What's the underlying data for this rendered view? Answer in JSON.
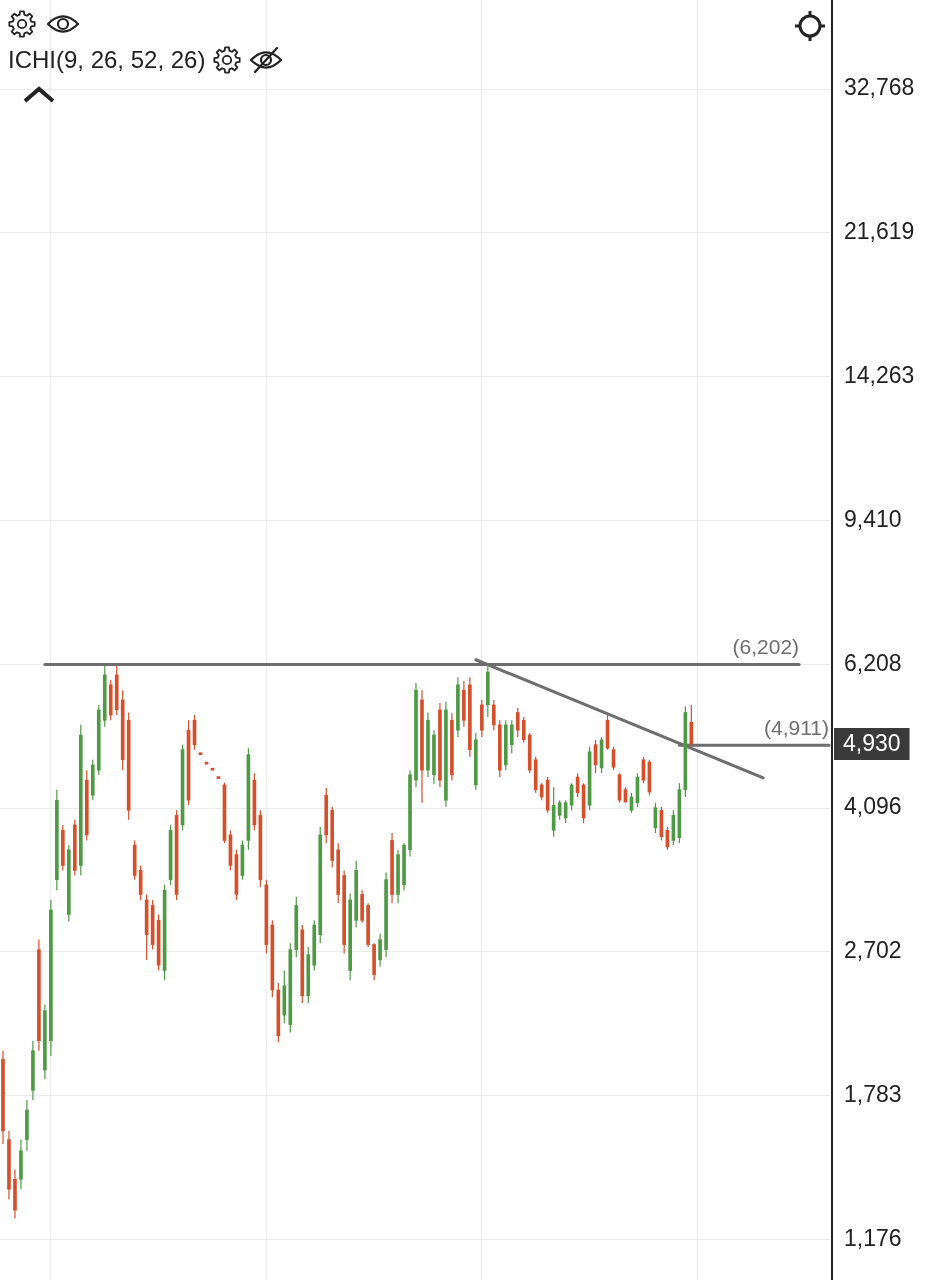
{
  "chart_data": {
    "type": "candlestick",
    "categories": [
      null,
      null,
      null,
      null,
      null,
      null,
      null,
      null,
      null,
      null,
      null,
      null,
      null,
      null,
      null,
      null,
      null,
      null,
      null,
      null,
      null,
      null,
      null,
      null,
      null,
      null,
      null,
      null,
      null,
      null,
      null,
      null,
      null,
      null,
      null,
      null,
      null,
      null,
      null,
      null,
      null,
      null,
      null,
      null,
      null,
      null,
      null,
      null,
      null,
      null,
      null,
      null,
      null,
      null,
      null,
      null,
      null,
      null,
      null,
      null,
      null,
      null,
      null,
      null,
      null,
      null,
      null,
      null,
      null,
      null,
      null,
      null,
      null,
      null,
      null,
      null,
      null,
      null,
      null,
      null,
      null,
      null,
      null,
      null,
      null,
      null,
      null,
      null,
      null,
      null,
      null,
      null,
      null,
      null,
      null,
      null,
      null,
      null,
      null,
      null,
      null,
      null,
      null,
      null,
      null,
      null,
      null,
      null,
      null,
      null,
      null,
      null,
      null,
      null,
      null,
      null,
      null,
      null,
      null,
      null,
      null,
      null,
      null,
      null,
      null,
      null,
      null,
      null,
      null,
      null,
      null,
      null,
      null,
      null,
      null,
      null,
      null,
      null,
      null
    ],
    "ohlc": [
      [
        1980,
        2030,
        1550,
        1610
      ],
      [
        1570,
        1610,
        1320,
        1360
      ],
      [
        1400,
        1440,
        1250,
        1280
      ],
      [
        1400,
        1570,
        1360,
        1520
      ],
      [
        1570,
        1760,
        1520,
        1710
      ],
      [
        1810,
        2090,
        1760,
        2030
      ],
      [
        2720,
        2800,
        2030,
        2090
      ],
      [
        1920,
        2320,
        1870,
        2280
      ],
      [
        2090,
        3140,
        2000,
        3050
      ],
      [
        3330,
        4320,
        3230,
        4190
      ],
      [
        3840,
        3900,
        3420,
        3470
      ],
      [
        3010,
        3680,
        2950,
        3630
      ],
      [
        3900,
        3960,
        3370,
        3420
      ],
      [
        3470,
        5210,
        3370,
        5060
      ],
      [
        4440,
        4570,
        3730,
        3790
      ],
      [
        4250,
        4710,
        4190,
        4640
      ],
      [
        4570,
        5520,
        4510,
        5440
      ],
      [
        5280,
        6180,
        5180,
        6020
      ],
      [
        5850,
        5930,
        5280,
        5360
      ],
      [
        6020,
        6180,
        5360,
        5440
      ],
      [
        5600,
        5760,
        4570,
        4710
      ],
      [
        5280,
        5400,
        3960,
        4070
      ],
      [
        3680,
        3730,
        3330,
        3370
      ],
      [
        3420,
        3470,
        3140,
        3190
      ],
      [
        3140,
        3190,
        2640,
        2840
      ],
      [
        3090,
        3140,
        2720,
        2760
      ],
      [
        2960,
        3010,
        2560,
        2600
      ],
      [
        2560,
        3280,
        2490,
        3230
      ],
      [
        3330,
        3900,
        3280,
        3840
      ],
      [
        4010,
        4070,
        3140,
        3190
      ],
      [
        3900,
        4920,
        3840,
        4850
      ],
      [
        5130,
        5280,
        4130,
        4190
      ],
      [
        5280,
        5360,
        4850,
        4920
      ],
      [
        4780,
        4780,
        4780,
        4780
      ],
      [
        4650,
        4650,
        4650,
        4650
      ],
      [
        4570,
        4570,
        4570,
        4570
      ],
      [
        4460,
        4460,
        4460,
        4460
      ],
      [
        4380,
        4410,
        3700,
        3730
      ],
      [
        3790,
        3840,
        3420,
        3470
      ],
      [
        3580,
        3630,
        3140,
        3190
      ],
      [
        3370,
        3730,
        3330,
        3680
      ],
      [
        3730,
        4870,
        3630,
        4780
      ],
      [
        4440,
        4530,
        3840,
        3900
      ],
      [
        4010,
        4070,
        3260,
        3330
      ],
      [
        3280,
        3330,
        2690,
        2760
      ],
      [
        2920,
        2960,
        2370,
        2420
      ],
      [
        2420,
        2470,
        2080,
        2120
      ],
      [
        2250,
        2560,
        2200,
        2450
      ],
      [
        2190,
        2770,
        2140,
        2720
      ],
      [
        2720,
        3170,
        2660,
        3090
      ],
      [
        2880,
        2920,
        2330,
        2380
      ],
      [
        2380,
        2740,
        2330,
        2680
      ],
      [
        2600,
        2960,
        2560,
        2920
      ],
      [
        2840,
        3880,
        2770,
        3790
      ],
      [
        4250,
        4340,
        3700,
        3790
      ],
      [
        4070,
        4110,
        3450,
        3520
      ],
      [
        3630,
        3700,
        3110,
        3190
      ],
      [
        3370,
        3420,
        2690,
        2760
      ],
      [
        2560,
        3200,
        2490,
        3140
      ],
      [
        2960,
        3520,
        2900,
        3420
      ],
      [
        3190,
        3230,
        2940,
        2960
      ],
      [
        3090,
        3110,
        2740,
        2760
      ],
      [
        2760,
        2770,
        2490,
        2530
      ],
      [
        2640,
        2850,
        2590,
        2800
      ],
      [
        2720,
        3400,
        2660,
        3330
      ],
      [
        3730,
        3810,
        3110,
        3190
      ],
      [
        3190,
        3630,
        3110,
        3580
      ],
      [
        3280,
        3700,
        3230,
        3680
      ],
      [
        3630,
        4570,
        3560,
        4510
      ],
      [
        4440,
        5880,
        4350,
        5760
      ],
      [
        5600,
        5760,
        4160,
        4570
      ],
      [
        4570,
        5400,
        4480,
        5280
      ],
      [
        4510,
        5130,
        4390,
        5060
      ],
      [
        5440,
        5550,
        4350,
        4440
      ],
      [
        4190,
        5570,
        4110,
        5440
      ],
      [
        5280,
        5390,
        4440,
        4510
      ],
      [
        5130,
        5980,
        5030,
        5850
      ],
      [
        5760,
        5920,
        5180,
        5280
      ],
      [
        5850,
        5980,
        4750,
        4850
      ],
      [
        4380,
        5090,
        4320,
        4990
      ],
      [
        5520,
        5600,
        5030,
        5130
      ],
      [
        5520,
        6200,
        5330,
        6070
      ],
      [
        5520,
        5600,
        5130,
        5210
      ],
      [
        5210,
        5280,
        4480,
        4570
      ],
      [
        4640,
        5280,
        4570,
        5210
      ],
      [
        4920,
        5280,
        4800,
        5210
      ],
      [
        5400,
        5470,
        5030,
        5130
      ],
      [
        5280,
        5330,
        4950,
        4990
      ],
      [
        5060,
        5090,
        4530,
        4570
      ],
      [
        4710,
        4750,
        4280,
        4320
      ],
      [
        4380,
        4400,
        4190,
        4230
      ],
      [
        4440,
        4480,
        4040,
        4070
      ],
      [
        3840,
        4350,
        3770,
        4130
      ],
      [
        4010,
        4190,
        3960,
        4160
      ],
      [
        3980,
        4190,
        3920,
        4160
      ],
      [
        4130,
        4400,
        4070,
        4380
      ],
      [
        4480,
        4530,
        4230,
        4280
      ],
      [
        4380,
        4400,
        3920,
        3980
      ],
      [
        4130,
        4890,
        4070,
        4820
      ],
      [
        4920,
        4990,
        4530,
        4640
      ],
      [
        4600,
        5030,
        4530,
        4990
      ],
      [
        5280,
        5360,
        4850,
        4870
      ],
      [
        4850,
        4890,
        4570,
        4610
      ],
      [
        4510,
        4530,
        4160,
        4190
      ],
      [
        4320,
        4350,
        4160,
        4170
      ],
      [
        4070,
        4280,
        4040,
        4230
      ],
      [
        4160,
        4530,
        4110,
        4480
      ],
      [
        4710,
        4750,
        4400,
        4440
      ],
      [
        4680,
        4710,
        4250,
        4290
      ],
      [
        3870,
        4160,
        3810,
        4100
      ],
      [
        4070,
        4110,
        3730,
        3770
      ],
      [
        3840,
        3880,
        3630,
        3660
      ],
      [
        3730,
        4070,
        3680,
        4010
      ],
      [
        3760,
        4400,
        3700,
        4320
      ],
      [
        4320,
        5500,
        4230,
        5400
      ],
      [
        5250,
        5520,
        4870,
        4930
      ],
      null,
      null,
      null,
      null,
      null,
      null,
      null,
      null,
      null,
      null,
      null,
      null,
      null,
      null,
      null,
      null,
      null,
      null,
      null,
      null,
      null,
      null,
      null
    ],
    "colors": [
      "#d5502b",
      "#d5502b",
      "#d5502b",
      "#4f9a45",
      "#4f9a45",
      "#4f9a45",
      "#d5502b",
      "#4f9a45",
      "#4f9a45",
      "#4f9a45",
      "#d5502b",
      "#4f9a45",
      "#d5502b",
      "#4f9a45",
      "#d5502b",
      "#4f9a45",
      "#4f9a45",
      "#4f9a45",
      "#d5502b",
      "#d5502b",
      "#d5502b",
      "#d5502b",
      "#d5502b",
      "#d5502b",
      "#d5502b",
      "#d5502b",
      "#d5502b",
      "#4f9a45",
      "#4f9a45",
      "#d5502b",
      "#4f9a45",
      "#d5502b",
      "#d5502b",
      "#d5502b",
      "#d5502b",
      "#d5502b",
      "#d5502b",
      "#d5502b",
      "#d5502b",
      "#d5502b",
      "#4f9a45",
      "#4f9a45",
      "#d5502b",
      "#d5502b",
      "#d5502b",
      "#d5502b",
      "#d5502b",
      "#4f9a45",
      "#4f9a45",
      "#4f9a45",
      "#d5502b",
      "#4f9a45",
      "#4f9a45",
      "#4f9a45",
      "#d5502b",
      "#d5502b",
      "#d5502b",
      "#d5502b",
      "#4f9a45",
      "#4f9a45",
      "#d5502b",
      "#d5502b",
      "#d5502b",
      "#4f9a45",
      "#4f9a45",
      "#d5502b",
      "#4f9a45",
      "#4f9a45",
      "#4f9a45",
      "#4f9a45",
      "#d5502b",
      "#4f9a45",
      "#4f9a45",
      "#d5502b",
      "#4f9a45",
      "#d5502b",
      "#4f9a45",
      "#d5502b",
      "#d5502b",
      "#4f9a45",
      "#d5502b",
      "#4f9a45",
      "#d5502b",
      "#d5502b",
      "#4f9a45",
      "#4f9a45",
      "#d5502b",
      "#d5502b",
      "#d5502b",
      "#d5502b",
      "#d5502b",
      "#d5502b",
      "#4f9a45",
      "#4f9a45",
      "#4f9a45",
      "#4f9a45",
      "#d5502b",
      "#d5502b",
      "#4f9a45",
      "#d5502b",
      "#4f9a45",
      "#d5502b",
      "#d5502b",
      "#d5502b",
      "#d5502b",
      "#4f9a45",
      "#4f9a45",
      "#d5502b",
      "#d5502b",
      "#4f9a45",
      "#d5502b",
      "#d5502b",
      "#4f9a45",
      "#4f9a45",
      "#4f9a45",
      "#d5502b",
      null,
      null,
      null,
      null,
      null,
      null,
      null,
      null,
      null,
      null,
      null,
      null,
      null,
      null,
      null,
      null,
      null,
      null,
      null,
      null,
      null,
      null,
      null
    ],
    "series": [
      {
        "type": "line",
        "color": "#6e6e6e",
        "values": [
          null,
          null,
          null,
          null,
          null,
          null,
          null,
          6202,
          null,
          null,
          null,
          null,
          null,
          null,
          null,
          null,
          null,
          null,
          null,
          null,
          null,
          null,
          null,
          null,
          null,
          null,
          null,
          null,
          null,
          null,
          null,
          null,
          null,
          null,
          null,
          null,
          null,
          null,
          null,
          null,
          null,
          null,
          null,
          null,
          null,
          null,
          null,
          null,
          null,
          null,
          null,
          null,
          null,
          null,
          null,
          null,
          null,
          null,
          null,
          null,
          null,
          null,
          null,
          null,
          null,
          null,
          null,
          null,
          null,
          null,
          null,
          null,
          null,
          null,
          null,
          null,
          null,
          null,
          null,
          null,
          null,
          null,
          null,
          null,
          null,
          null,
          null,
          null,
          null,
          null,
          null,
          null,
          null,
          null,
          null,
          null,
          null,
          null,
          null,
          null,
          null,
          null,
          null,
          null,
          null,
          null,
          null,
          null,
          null,
          null,
          null,
          null,
          null,
          null,
          null,
          null,
          null,
          null,
          null,
          null,
          null,
          null,
          null,
          null,
          null,
          null,
          null,
          null,
          null,
          null,
          null,
          null,
          null,
          6202,
          null,
          null,
          null,
          null,
          null
        ],
        "value_labels": [
          null,
          null,
          null,
          null,
          null,
          null,
          null,
          null,
          null,
          null,
          null,
          null,
          null,
          null,
          null,
          null,
          null,
          null,
          null,
          null,
          null,
          null,
          null,
          null,
          null,
          null,
          null,
          null,
          null,
          null,
          null,
          null,
          null,
          null,
          null,
          null,
          null,
          null,
          null,
          null,
          null,
          null,
          null,
          null,
          null,
          null,
          null,
          null,
          null,
          null,
          null,
          null,
          null,
          null,
          null,
          null,
          null,
          null,
          null,
          null,
          null,
          null,
          null,
          null,
          null,
          null,
          null,
          null,
          null,
          null,
          null,
          null,
          null,
          null,
          null,
          null,
          null,
          null,
          null,
          null,
          null,
          null,
          null,
          null,
          null,
          null,
          null,
          null,
          null,
          null,
          null,
          null,
          null,
          null,
          null,
          null,
          null,
          null,
          null,
          null,
          null,
          null,
          null,
          null,
          null,
          null,
          null,
          null,
          null,
          null,
          null,
          null,
          null,
          null,
          null,
          null,
          null,
          null,
          null,
          null,
          null,
          null,
          null,
          null,
          null,
          null,
          null,
          null,
          null,
          null,
          null,
          null,
          null,
          "(6,202)",
          null,
          null,
          null,
          null,
          null
        ]
      },
      {
        "type": "line",
        "color": "#6e6e6e",
        "values": [
          null,
          null,
          null,
          null,
          null,
          null,
          null,
          null,
          null,
          null,
          null,
          null,
          null,
          null,
          null,
          null,
          null,
          null,
          null,
          null,
          null,
          null,
          null,
          null,
          null,
          null,
          null,
          null,
          null,
          null,
          null,
          null,
          null,
          null,
          null,
          null,
          null,
          null,
          null,
          null,
          null,
          null,
          null,
          null,
          null,
          null,
          null,
          null,
          null,
          null,
          null,
          null,
          null,
          null,
          null,
          null,
          null,
          null,
          null,
          null,
          null,
          null,
          null,
          null,
          null,
          null,
          null,
          null,
          null,
          null,
          null,
          null,
          null,
          null,
          null,
          null,
          null,
          null,
          null,
          6290,
          null,
          null,
          null,
          null,
          null,
          null,
          null,
          null,
          null,
          null,
          null,
          null,
          null,
          null,
          null,
          null,
          null,
          null,
          null,
          null,
          null,
          null,
          null,
          null,
          null,
          null,
          null,
          null,
          null,
          null,
          null,
          null,
          null,
          null,
          null,
          null,
          null,
          null,
          null,
          null,
          null,
          null,
          null,
          null,
          null,
          null,
          null,
          4470,
          null,
          null,
          null,
          null,
          null,
          null,
          null,
          null,
          null,
          null,
          null
        ]
      },
      {
        "type": "line",
        "color": "#6e6e6e",
        "values": [
          null,
          null,
          null,
          null,
          null,
          null,
          null,
          null,
          null,
          null,
          null,
          null,
          null,
          null,
          null,
          null,
          null,
          null,
          null,
          null,
          null,
          null,
          null,
          null,
          null,
          null,
          null,
          null,
          null,
          null,
          null,
          null,
          null,
          null,
          null,
          null,
          null,
          null,
          null,
          null,
          null,
          null,
          null,
          null,
          null,
          null,
          null,
          null,
          null,
          null,
          null,
          null,
          null,
          null,
          null,
          null,
          null,
          null,
          null,
          null,
          null,
          null,
          null,
          null,
          null,
          null,
          null,
          null,
          null,
          null,
          null,
          null,
          null,
          null,
          null,
          null,
          null,
          null,
          null,
          null,
          null,
          null,
          null,
          null,
          null,
          null,
          null,
          null,
          null,
          null,
          null,
          null,
          null,
          null,
          null,
          null,
          null,
          null,
          null,
          null,
          null,
          null,
          null,
          null,
          null,
          null,
          null,
          null,
          null,
          null,
          null,
          null,
          null,
          4911,
          null,
          null,
          null,
          null,
          null,
          null,
          null,
          null,
          null,
          null,
          null,
          null,
          null,
          null,
          null,
          null,
          null,
          null,
          null,
          null,
          null,
          null,
          null,
          null,
          4911
        ],
        "value_labels": [
          null,
          null,
          null,
          null,
          null,
          null,
          null,
          null,
          null,
          null,
          null,
          null,
          null,
          null,
          null,
          null,
          null,
          null,
          null,
          null,
          null,
          null,
          null,
          null,
          null,
          null,
          null,
          null,
          null,
          null,
          null,
          null,
          null,
          null,
          null,
          null,
          null,
          null,
          null,
          null,
          null,
          null,
          null,
          null,
          null,
          null,
          null,
          null,
          null,
          null,
          null,
          null,
          null,
          null,
          null,
          null,
          null,
          null,
          null,
          null,
          null,
          null,
          null,
          null,
          null,
          null,
          null,
          null,
          null,
          null,
          null,
          null,
          null,
          null,
          null,
          null,
          null,
          null,
          null,
          null,
          null,
          null,
          null,
          null,
          null,
          null,
          null,
          null,
          null,
          null,
          null,
          null,
          null,
          null,
          null,
          null,
          null,
          null,
          null,
          null,
          null,
          null,
          null,
          null,
          null,
          null,
          null,
          null,
          null,
          null,
          null,
          null,
          null,
          null,
          null,
          null,
          null,
          null,
          null,
          null,
          null,
          null,
          null,
          null,
          null,
          null,
          null,
          null,
          null,
          null,
          null,
          null,
          null,
          null,
          null,
          null,
          null,
          null,
          "(4,911)"
        ]
      }
    ],
    "ylim": [
      1046,
      42400
    ],
    "yticks": [
      {
        "value": 1176,
        "label": "1,176"
      },
      {
        "value": 1783,
        "label": "1,783"
      },
      {
        "value": 2702,
        "label": "2,702"
      },
      {
        "value": 4096,
        "label": "4,096"
      },
      {
        "value": 6208,
        "label": "6,208"
      },
      {
        "value": 9410,
        "label": "9,410"
      },
      {
        "value": 14263,
        "label": "14,263"
      },
      {
        "value": 21619,
        "label": "21,619"
      },
      {
        "value": 32768,
        "label": "32,768"
      }
    ],
    "log": true,
    "grid": true,
    "tick_labels": "y",
    "marker": "none",
    "annotations": [
      "ICHI(9, 26, 52, 26)",
      "4,930"
    ]
  }
}
